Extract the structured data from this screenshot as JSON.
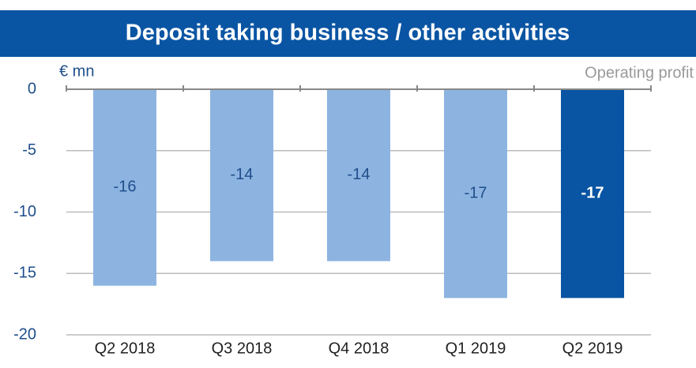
{
  "chart_data": {
    "type": "bar",
    "title": "Deposit taking business / other activities",
    "y_label": "€ mn",
    "legend": "Operating profit",
    "categories": [
      "Q2 2018",
      "Q3 2018",
      "Q4 2018",
      "Q1 2019",
      "Q2 2019"
    ],
    "values": [
      -16,
      -14,
      -14,
      -17,
      -17
    ],
    "colors": [
      "#8db4e0",
      "#8db4e0",
      "#8db4e0",
      "#8db4e0",
      "#0a55a3"
    ],
    "ylim": [
      -20,
      0
    ],
    "yticks": [
      0,
      -5,
      -10,
      -15,
      -20
    ],
    "grid": true
  }
}
